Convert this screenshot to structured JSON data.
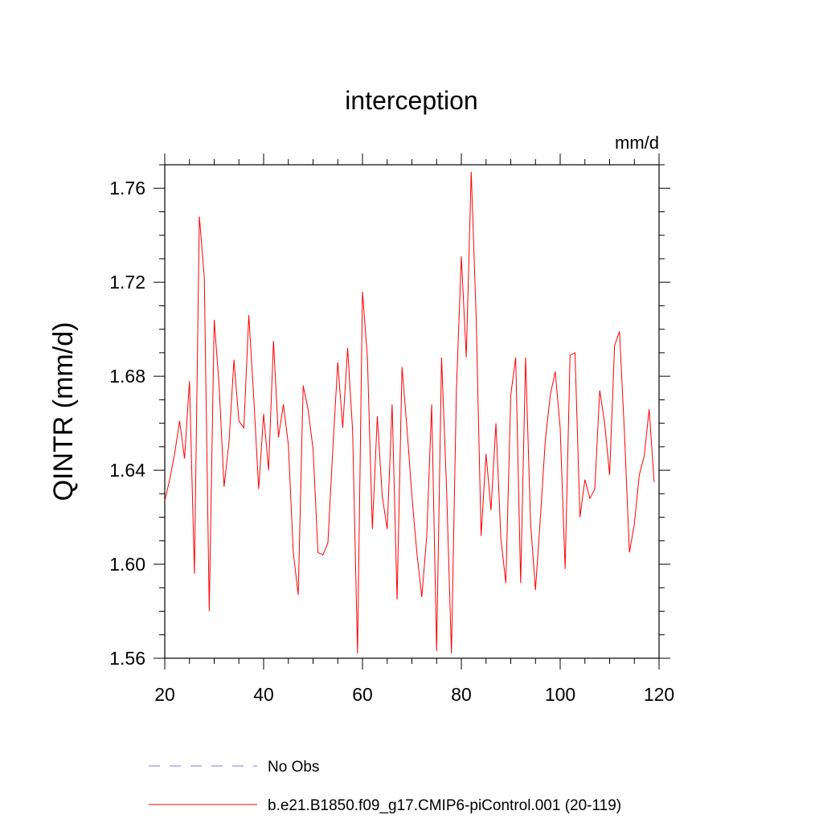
{
  "chart_data": {
    "type": "line",
    "title": "interception",
    "units_label": "mm/d",
    "xlabel": "",
    "ylabel": "QINTR  (mm/d)",
    "xlim": [
      20,
      120
    ],
    "ylim": [
      1.56,
      1.77
    ],
    "x_ticks": [
      20,
      40,
      60,
      80,
      100,
      120
    ],
    "x_tick_labels": [
      "20",
      "40",
      "60",
      "80",
      "100",
      "120"
    ],
    "y_ticks": [
      1.56,
      1.6,
      1.64,
      1.68,
      1.72,
      1.76
    ],
    "y_tick_labels": [
      "1.56",
      "1.60",
      "1.64",
      "1.68",
      "1.72",
      "1.76"
    ],
    "grid": false,
    "legend_position": "bottom",
    "legend": [
      {
        "label": "No Obs",
        "color": "#7b7bd8",
        "style": "dashed"
      },
      {
        "label": "b.e21.B1850.f09_g17.CMIP6-piControl.001 (20-119)",
        "color": "#ff0000",
        "style": "solid"
      }
    ],
    "series": [
      {
        "name": "b.e21.B1850.f09_g17.CMIP6-piControl.001 (20-119)",
        "color": "#ff0000",
        "x_start": 20,
        "values": [
          1.627,
          1.636,
          1.647,
          1.661,
          1.645,
          1.678,
          1.596,
          1.748,
          1.722,
          1.58,
          1.704,
          1.676,
          1.633,
          1.652,
          1.687,
          1.661,
          1.658,
          1.706,
          1.671,
          1.632,
          1.664,
          1.64,
          1.695,
          1.654,
          1.668,
          1.651,
          1.605,
          1.587,
          1.676,
          1.666,
          1.649,
          1.605,
          1.604,
          1.609,
          1.649,
          1.686,
          1.658,
          1.692,
          1.657,
          1.562,
          1.716,
          1.688,
          1.615,
          1.663,
          1.629,
          1.615,
          1.668,
          1.585,
          1.684,
          1.658,
          1.629,
          1.605,
          1.586,
          1.612,
          1.668,
          1.563,
          1.688,
          1.633,
          1.562,
          1.674,
          1.731,
          1.688,
          1.767,
          1.705,
          1.612,
          1.647,
          1.623,
          1.66,
          1.611,
          1.592,
          1.672,
          1.688,
          1.592,
          1.688,
          1.618,
          1.589,
          1.62,
          1.653,
          1.672,
          1.682,
          1.658,
          1.598,
          1.689,
          1.69,
          1.62,
          1.636,
          1.628,
          1.632,
          1.674,
          1.66,
          1.638,
          1.693,
          1.699,
          1.656,
          1.605,
          1.617,
          1.638,
          1.646,
          1.666,
          1.635
        ]
      }
    ]
  }
}
